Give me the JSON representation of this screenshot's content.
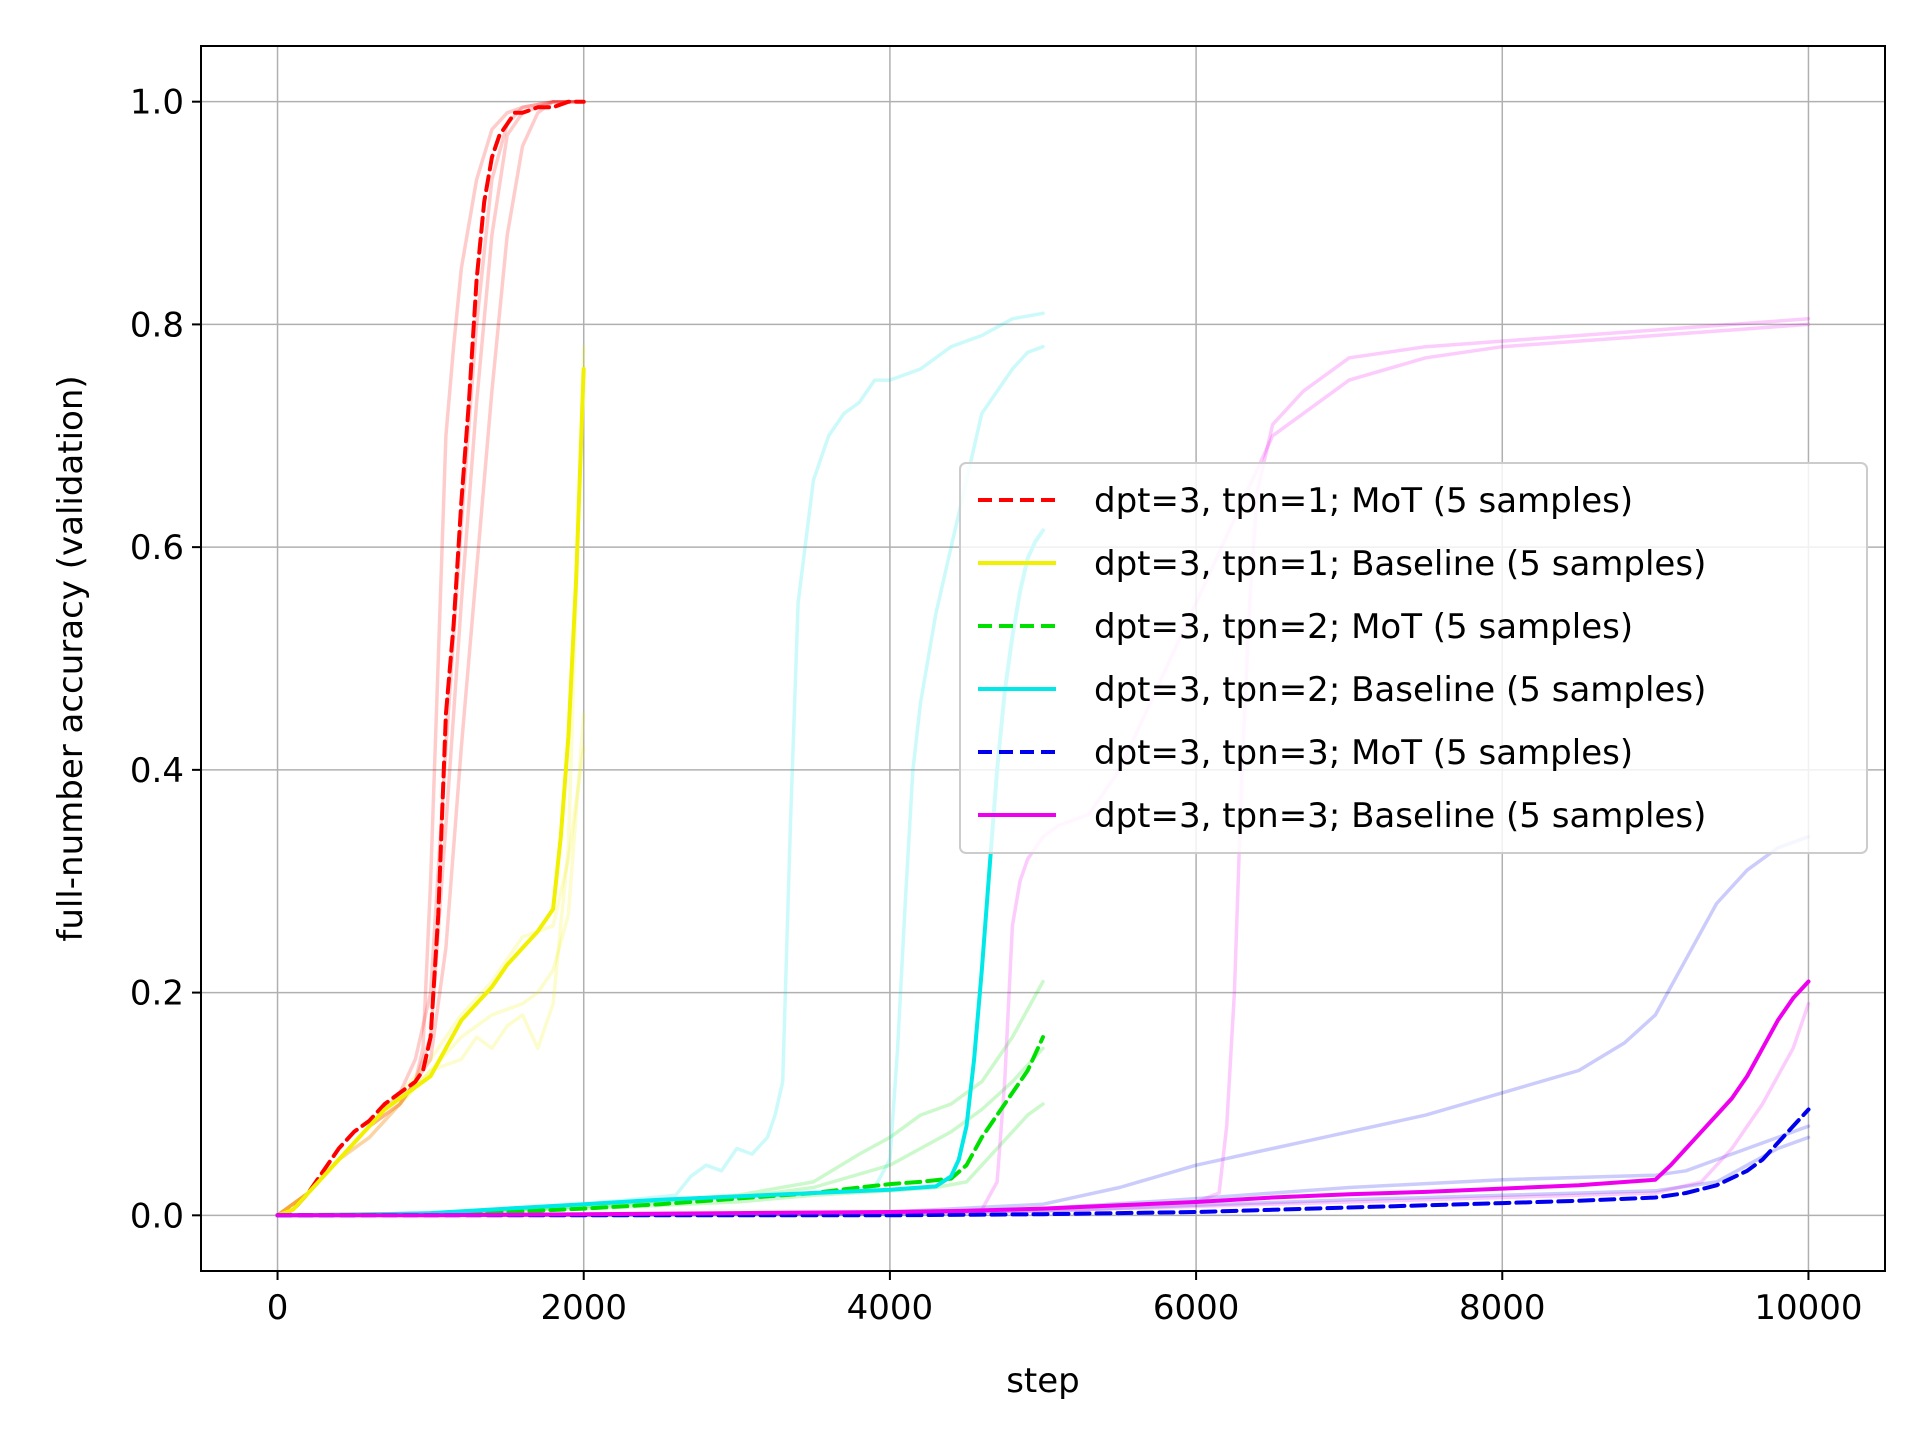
{
  "chart_data": {
    "type": "line",
    "xlabel": "step",
    "ylabel": "full-number accuracy (validation)",
    "xlim": [
      -500,
      10500
    ],
    "ylim": [
      -0.05,
      1.05
    ],
    "xticks": [
      0,
      2000,
      4000,
      6000,
      8000,
      10000
    ],
    "xtick_labels": [
      "0",
      "2000",
      "4000",
      "6000",
      "8000",
      "10000"
    ],
    "yticks": [
      0.0,
      0.2,
      0.4,
      0.6,
      0.8,
      1.0
    ],
    "ytick_labels": [
      "0.0",
      "0.2",
      "0.4",
      "0.6",
      "0.8",
      "1.0"
    ],
    "grid": true,
    "legend_placement": "center-right",
    "series": [
      {
        "name": "dpt=3, tpn=1; MoT (5 samples)",
        "color": "#ff0000",
        "style": "dashed",
        "x": [
          0,
          100,
          200,
          300,
          400,
          500,
          600,
          700,
          800,
          900,
          950,
          1000,
          1050,
          1100,
          1150,
          1200,
          1250,
          1300,
          1350,
          1400,
          1450,
          1500,
          1550,
          1600,
          1700,
          1800,
          1900,
          2000
        ],
        "y": [
          0.0,
          0.005,
          0.02,
          0.04,
          0.06,
          0.075,
          0.085,
          0.1,
          0.11,
          0.12,
          0.13,
          0.16,
          0.27,
          0.45,
          0.53,
          0.64,
          0.73,
          0.84,
          0.91,
          0.95,
          0.97,
          0.98,
          0.99,
          0.99,
          0.995,
          0.995,
          1.0,
          1.0
        ]
      },
      {
        "name": "dpt=3, tpn=1; Baseline (5 samples)",
        "color": "#f0f000",
        "style": "solid",
        "x": [
          0,
          100,
          200,
          300,
          400,
          500,
          600,
          700,
          800,
          900,
          1000,
          1100,
          1200,
          1300,
          1400,
          1500,
          1600,
          1700,
          1800,
          1850,
          1900,
          1950,
          2000
        ],
        "y": [
          0.0,
          0.005,
          0.02,
          0.035,
          0.05,
          0.065,
          0.08,
          0.095,
          0.105,
          0.115,
          0.125,
          0.15,
          0.175,
          0.19,
          0.205,
          0.225,
          0.24,
          0.255,
          0.275,
          0.34,
          0.43,
          0.57,
          0.76
        ]
      },
      {
        "name": "dpt=3, tpn=2; MoT (5 samples)",
        "color": "#00e000",
        "style": "dashed",
        "x": [
          0,
          500,
          1000,
          1500,
          2000,
          2500,
          3000,
          3500,
          3800,
          4000,
          4200,
          4400,
          4500,
          4600,
          4700,
          4800,
          4900,
          5000
        ],
        "y": [
          0.0,
          0.0,
          0.001,
          0.003,
          0.006,
          0.01,
          0.015,
          0.02,
          0.025,
          0.028,
          0.03,
          0.033,
          0.045,
          0.07,
          0.09,
          0.11,
          0.13,
          0.16
        ]
      },
      {
        "name": "dpt=3, tpn=2; Baseline (5 samples)",
        "color": "#00e8e8",
        "style": "solid",
        "x": [
          0,
          500,
          1000,
          1500,
          2000,
          2500,
          3000,
          3500,
          4000,
          4300,
          4400,
          4450,
          4500,
          4550,
          4600,
          4650,
          4700,
          4750,
          4800,
          4850,
          4900,
          4950,
          5000
        ],
        "y": [
          0.0,
          0.0,
          0.002,
          0.006,
          0.01,
          0.014,
          0.017,
          0.02,
          0.023,
          0.026,
          0.035,
          0.05,
          0.08,
          0.14,
          0.22,
          0.31,
          0.4,
          0.47,
          0.52,
          0.56,
          0.59,
          0.605,
          0.615
        ]
      },
      {
        "name": "dpt=3, tpn=3; MoT (5 samples)",
        "color": "#0000ee",
        "style": "dashed",
        "x": [
          0,
          2000,
          4000,
          5000,
          5500,
          6000,
          6500,
          7000,
          7500,
          8000,
          8500,
          9000,
          9200,
          9400,
          9600,
          9700,
          9800,
          9900,
          10000
        ],
        "y": [
          0.0,
          0.0,
          0.0,
          0.001,
          0.002,
          0.003,
          0.005,
          0.007,
          0.009,
          0.011,
          0.013,
          0.016,
          0.02,
          0.027,
          0.04,
          0.05,
          0.065,
          0.08,
          0.095
        ]
      },
      {
        "name": "dpt=3, tpn=3; Baseline (5 samples)",
        "color": "#ee00ee",
        "style": "solid",
        "x": [
          0,
          1000,
          2000,
          3000,
          4000,
          4500,
          5000,
          5500,
          6000,
          6500,
          7000,
          7500,
          8000,
          8500,
          9000,
          9100,
          9200,
          9300,
          9400,
          9500,
          9600,
          9700,
          9800,
          9900,
          10000
        ],
        "y": [
          0.0,
          0.0,
          0.001,
          0.002,
          0.003,
          0.004,
          0.006,
          0.009,
          0.012,
          0.016,
          0.019,
          0.021,
          0.024,
          0.027,
          0.032,
          0.045,
          0.06,
          0.075,
          0.09,
          0.105,
          0.125,
          0.15,
          0.175,
          0.195,
          0.21
        ]
      }
    ],
    "faint_samples": [
      {
        "color": "#ff0000",
        "lines": [
          {
            "x": [
              0,
              200,
              400,
              600,
              800,
              900,
              950,
              1000,
              1050,
              1100,
              1150,
              1200,
              1300,
              1400,
              1500,
              1600,
              1800,
              2000
            ],
            "y": [
              0.0,
              0.02,
              0.05,
              0.08,
              0.1,
              0.12,
              0.15,
              0.3,
              0.5,
              0.7,
              0.78,
              0.85,
              0.93,
              0.975,
              0.99,
              0.995,
              1.0,
              1.0
            ]
          },
          {
            "x": [
              0,
              200,
              400,
              600,
              800,
              900,
              1000,
              1100,
              1200,
              1300,
              1400,
              1500,
              1600,
              1800,
              2000
            ],
            "y": [
              0.0,
              0.02,
              0.05,
              0.08,
              0.11,
              0.14,
              0.2,
              0.42,
              0.62,
              0.8,
              0.93,
              0.98,
              0.995,
              1.0,
              1.0
            ]
          },
          {
            "x": [
              0,
              200,
              400,
              600,
              800,
              900,
              1000,
              1100,
              1200,
              1300,
              1400,
              1500,
              1600,
              1700,
              1800,
              2000
            ],
            "y": [
              0.0,
              0.02,
              0.05,
              0.07,
              0.1,
              0.12,
              0.14,
              0.24,
              0.42,
              0.58,
              0.74,
              0.88,
              0.96,
              0.99,
              1.0,
              1.0
            ]
          },
          {
            "x": [
              0,
              200,
              400,
              600,
              800,
              900,
              1000,
              1100,
              1200,
              1300,
              1400,
              1500,
              1600,
              1800,
              2000
            ],
            "y": [
              0.0,
              0.02,
              0.05,
              0.08,
              0.1,
              0.12,
              0.16,
              0.35,
              0.55,
              0.73,
              0.88,
              0.97,
              0.99,
              1.0,
              1.0
            ]
          }
        ]
      },
      {
        "color": "#f0f000",
        "lines": [
          {
            "x": [
              0,
              200,
              400,
              600,
              800,
              1000,
              1200,
              1400,
              1600,
              1700,
              1800,
              1900,
              2000
            ],
            "y": [
              0.0,
              0.02,
              0.05,
              0.08,
              0.1,
              0.13,
              0.16,
              0.18,
              0.19,
              0.2,
              0.22,
              0.27,
              0.45
            ]
          },
          {
            "x": [
              0,
              200,
              400,
              600,
              800,
              1000,
              1200,
              1300,
              1400,
              1500,
              1600,
              1700,
              1800,
              1900,
              2000
            ],
            "y": [
              0.0,
              0.02,
              0.05,
              0.07,
              0.1,
              0.13,
              0.14,
              0.16,
              0.15,
              0.17,
              0.18,
              0.15,
              0.19,
              0.33,
              0.78
            ]
          },
          {
            "x": [
              0,
              200,
              400,
              600,
              800,
              1000,
              1200,
              1400,
              1600,
              1800,
              1900,
              2000
            ],
            "y": [
              0.0,
              0.02,
              0.05,
              0.08,
              0.11,
              0.14,
              0.18,
              0.21,
              0.25,
              0.26,
              0.32,
              0.42
            ]
          }
        ]
      },
      {
        "color": "#00e000",
        "lines": [
          {
            "x": [
              0,
              1000,
              2000,
              3000,
              3500,
              3800,
              4000,
              4200,
              4400,
              4600,
              4800,
              5000
            ],
            "y": [
              0.0,
              0.002,
              0.008,
              0.018,
              0.03,
              0.055,
              0.07,
              0.09,
              0.1,
              0.12,
              0.16,
              0.21
            ]
          },
          {
            "x": [
              0,
              1000,
              2000,
              3000,
              3500,
              4000,
              4200,
              4400,
              4600,
              4800,
              5000
            ],
            "y": [
              0.0,
              0.002,
              0.008,
              0.016,
              0.025,
              0.045,
              0.06,
              0.075,
              0.095,
              0.12,
              0.15
            ]
          },
          {
            "x": [
              0,
              1000,
              2000,
              3000,
              3500,
              4000,
              4300,
              4500,
              4600,
              4700,
              4800,
              4900,
              5000
            ],
            "y": [
              0.0,
              0.002,
              0.006,
              0.012,
              0.018,
              0.022,
              0.025,
              0.03,
              0.045,
              0.06,
              0.075,
              0.09,
              0.1
            ]
          }
        ]
      },
      {
        "color": "#00e8e8",
        "lines": [
          {
            "x": [
              0,
              1000,
              2000,
              2600,
              2700,
              2800,
              2900,
              3000,
              3100,
              3200,
              3250,
              3300,
              3350,
              3400,
              3500,
              3600,
              3700,
              3800,
              3900,
              4000,
              4200,
              4400,
              4600,
              4800,
              5000
            ],
            "y": [
              0.0,
              0.002,
              0.01,
              0.018,
              0.035,
              0.045,
              0.04,
              0.06,
              0.055,
              0.07,
              0.09,
              0.12,
              0.35,
              0.55,
              0.66,
              0.7,
              0.72,
              0.73,
              0.75,
              0.75,
              0.76,
              0.78,
              0.79,
              0.805,
              0.81
            ]
          },
          {
            "x": [
              0,
              1000,
              2000,
              3000,
              3500,
              3900,
              4000,
              4050,
              4100,
              4150,
              4200,
              4300,
              4400,
              4500,
              4600,
              4700,
              4800,
              4900,
              5000
            ],
            "y": [
              0.0,
              0.002,
              0.01,
              0.016,
              0.02,
              0.025,
              0.05,
              0.15,
              0.28,
              0.4,
              0.46,
              0.54,
              0.6,
              0.66,
              0.72,
              0.74,
              0.76,
              0.775,
              0.78
            ]
          }
        ]
      },
      {
        "color": "#0000ee",
        "lines": [
          {
            "x": [
              0,
              2000,
              4000,
              5000,
              5500,
              6000,
              6500,
              7000,
              7500,
              8000,
              8500,
              8800,
              9000,
              9200,
              9400,
              9600,
              9800,
              10000
            ],
            "y": [
              0.0,
              0.001,
              0.003,
              0.01,
              0.025,
              0.045,
              0.06,
              0.075,
              0.09,
              0.11,
              0.13,
              0.155,
              0.18,
              0.23,
              0.28,
              0.31,
              0.33,
              0.34
            ]
          },
          {
            "x": [
              0,
              2000,
              4000,
              5000,
              6000,
              7000,
              8000,
              9000,
              9200,
              9400,
              9600,
              9800,
              10000
            ],
            "y": [
              0.0,
              0.0,
              0.002,
              0.006,
              0.015,
              0.025,
              0.032,
              0.036,
              0.04,
              0.05,
              0.06,
              0.07,
              0.08
            ]
          },
          {
            "x": [
              0,
              2000,
              4000,
              5000,
              6000,
              7000,
              8000,
              9000,
              9400,
              9600,
              9800,
              10000
            ],
            "y": [
              0.0,
              0.0,
              0.001,
              0.004,
              0.009,
              0.014,
              0.018,
              0.022,
              0.03,
              0.045,
              0.06,
              0.07
            ]
          }
        ]
      },
      {
        "color": "#ee00ee",
        "lines": [
          {
            "x": [
              0,
              2000,
              4000,
              4600,
              4700,
              4750,
              4800,
              4850,
              4900,
              5000,
              5100,
              5200,
              5300,
              5500,
              6000,
              6500,
              7000,
              7500,
              8000,
              8500,
              9000,
              9500,
              10000
            ],
            "y": [
              0.0,
              0.001,
              0.002,
              0.005,
              0.03,
              0.12,
              0.26,
              0.3,
              0.32,
              0.34,
              0.35,
              0.355,
              0.36,
              0.4,
              0.55,
              0.7,
              0.75,
              0.77,
              0.78,
              0.785,
              0.79,
              0.795,
              0.8
            ]
          },
          {
            "x": [
              0,
              2000,
              4000,
              5000,
              6000,
              6150,
              6200,
              6250,
              6300,
              6350,
              6400,
              6500,
              6700,
              7000,
              7500,
              8000,
              8500,
              9000,
              9500,
              10000
            ],
            "y": [
              0.0,
              0.001,
              0.003,
              0.006,
              0.012,
              0.02,
              0.08,
              0.2,
              0.4,
              0.55,
              0.65,
              0.71,
              0.74,
              0.77,
              0.78,
              0.785,
              0.79,
              0.795,
              0.8,
              0.805
            ]
          },
          {
            "x": [
              0,
              2000,
              4000,
              5000,
              6000,
              7000,
              8000,
              9000,
              9300,
              9500,
              9700,
              9900,
              10000
            ],
            "y": [
              0.0,
              0.001,
              0.002,
              0.004,
              0.008,
              0.012,
              0.016,
              0.02,
              0.03,
              0.06,
              0.1,
              0.15,
              0.19
            ]
          }
        ]
      }
    ]
  }
}
